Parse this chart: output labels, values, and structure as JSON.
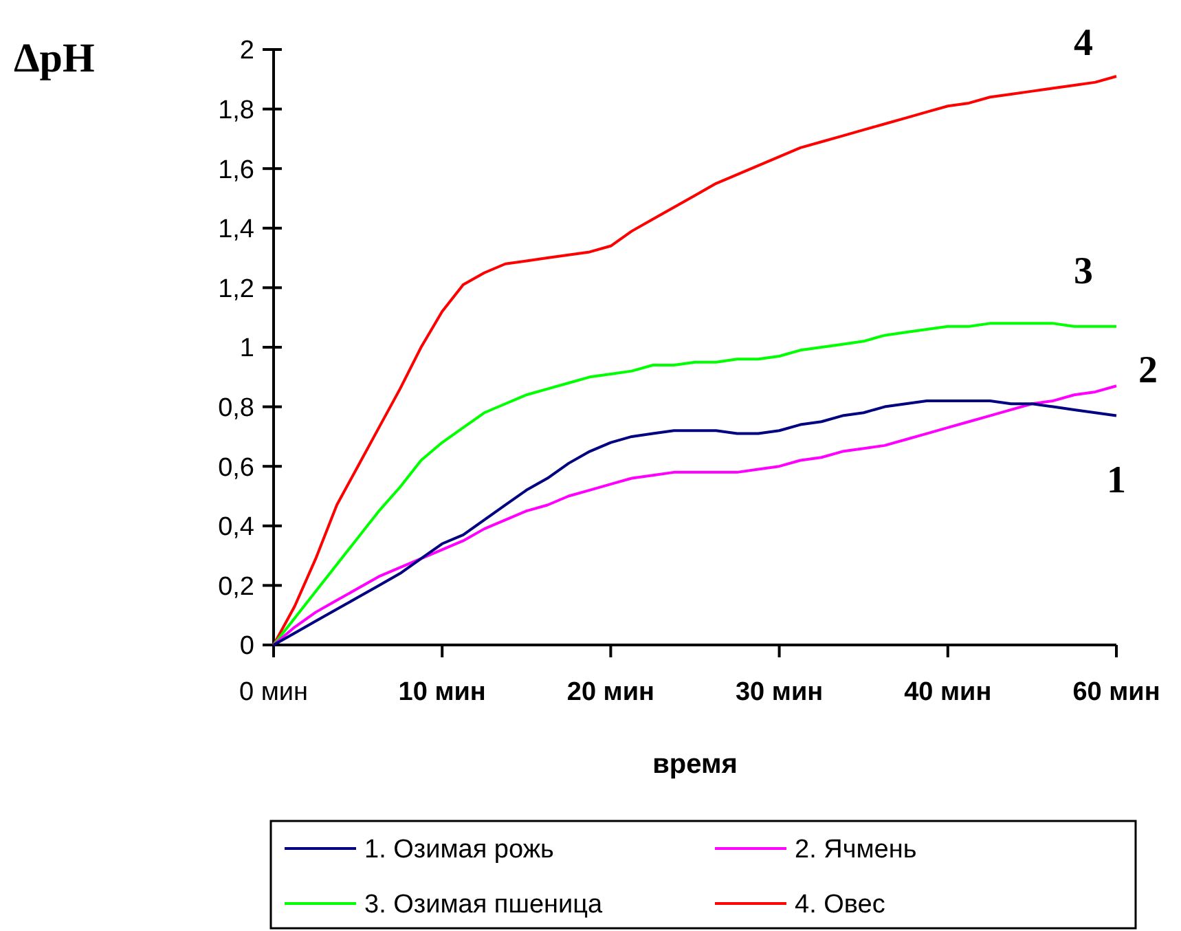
{
  "chart_data": {
    "type": "line",
    "ylabel": "ΔpH",
    "xlabel": "время",
    "categories": [
      "0 мин",
      null,
      null,
      null,
      null,
      null,
      null,
      null,
      "10 мин",
      null,
      null,
      null,
      null,
      null,
      null,
      null,
      "20 мин",
      null,
      null,
      null,
      null,
      null,
      null,
      null,
      "30 мин",
      null,
      null,
      null,
      null,
      null,
      null,
      null,
      "40 мин",
      null,
      null,
      null,
      null,
      null,
      null,
      null,
      "60 мин"
    ],
    "series": [
      {
        "name": "1. Озимая рожь",
        "color": "#000080",
        "values": [
          0,
          0.04,
          0.08,
          0.12,
          0.16,
          0.2,
          0.24,
          0.29,
          0.34,
          0.37,
          0.42,
          0.47,
          0.52,
          0.56,
          0.61,
          0.65,
          0.68,
          0.7,
          0.71,
          0.72,
          0.72,
          0.72,
          0.71,
          0.71,
          0.72,
          0.74,
          0.75,
          0.77,
          0.78,
          0.8,
          0.81,
          0.82,
          0.82,
          0.82,
          0.82,
          0.81,
          0.81,
          0.8,
          0.79,
          0.78,
          0.77
        ]
      },
      {
        "name": "2. Ячмень",
        "color": "#ff00ff",
        "values": [
          0,
          0.06,
          0.11,
          0.15,
          0.19,
          0.23,
          0.26,
          0.29,
          0.32,
          0.35,
          0.39,
          0.42,
          0.45,
          0.47,
          0.5,
          0.52,
          0.54,
          0.56,
          0.57,
          0.58,
          0.58,
          0.58,
          0.58,
          0.59,
          0.6,
          0.62,
          0.63,
          0.65,
          0.66,
          0.67,
          0.69,
          0.71,
          0.73,
          0.75,
          0.77,
          0.79,
          0.81,
          0.82,
          0.84,
          0.85,
          0.87
        ]
      },
      {
        "name": "3. Озимая пшеница",
        "color": "#00ff00",
        "values": [
          0,
          0.09,
          0.18,
          0.27,
          0.36,
          0.45,
          0.53,
          0.62,
          0.68,
          0.73,
          0.78,
          0.81,
          0.84,
          0.86,
          0.88,
          0.9,
          0.91,
          0.92,
          0.94,
          0.94,
          0.95,
          0.95,
          0.96,
          0.96,
          0.97,
          0.99,
          1.0,
          1.01,
          1.02,
          1.04,
          1.05,
          1.06,
          1.07,
          1.07,
          1.08,
          1.08,
          1.08,
          1.08,
          1.07,
          1.07,
          1.07
        ]
      },
      {
        "name": "4. Овес",
        "color": "#ff0000",
        "values": [
          0,
          0.13,
          0.29,
          0.47,
          0.6,
          0.73,
          0.86,
          1.0,
          1.12,
          1.21,
          1.25,
          1.28,
          1.29,
          1.3,
          1.31,
          1.32,
          1.34,
          1.39,
          1.43,
          1.47,
          1.51,
          1.55,
          1.58,
          1.61,
          1.64,
          1.67,
          1.69,
          1.71,
          1.73,
          1.75,
          1.77,
          1.79,
          1.81,
          1.82,
          1.84,
          1.85,
          1.86,
          1.87,
          1.88,
          1.89,
          1.91
        ]
      }
    ],
    "ylim": [
      0,
      2
    ],
    "yticks": [
      0,
      {
        "value": 0.2,
        "label": "0,2"
      },
      {
        "value": 0.4,
        "label": "0,4"
      },
      {
        "value": 0.6,
        "label": "0,6"
      },
      {
        "value": 0.8,
        "label": "0,8"
      },
      1,
      {
        "value": 1.2,
        "label": "1,2"
      },
      {
        "value": 1.4,
        "label": "1,4"
      },
      {
        "value": 1.6,
        "label": "1,6"
      },
      {
        "value": 1.8,
        "label": "1,8"
      },
      2
    ],
    "annotations": [
      "4",
      "3",
      "2",
      "1"
    ],
    "grid": false,
    "legend": "bottom",
    "marker": "none",
    "line_style": "solid"
  }
}
